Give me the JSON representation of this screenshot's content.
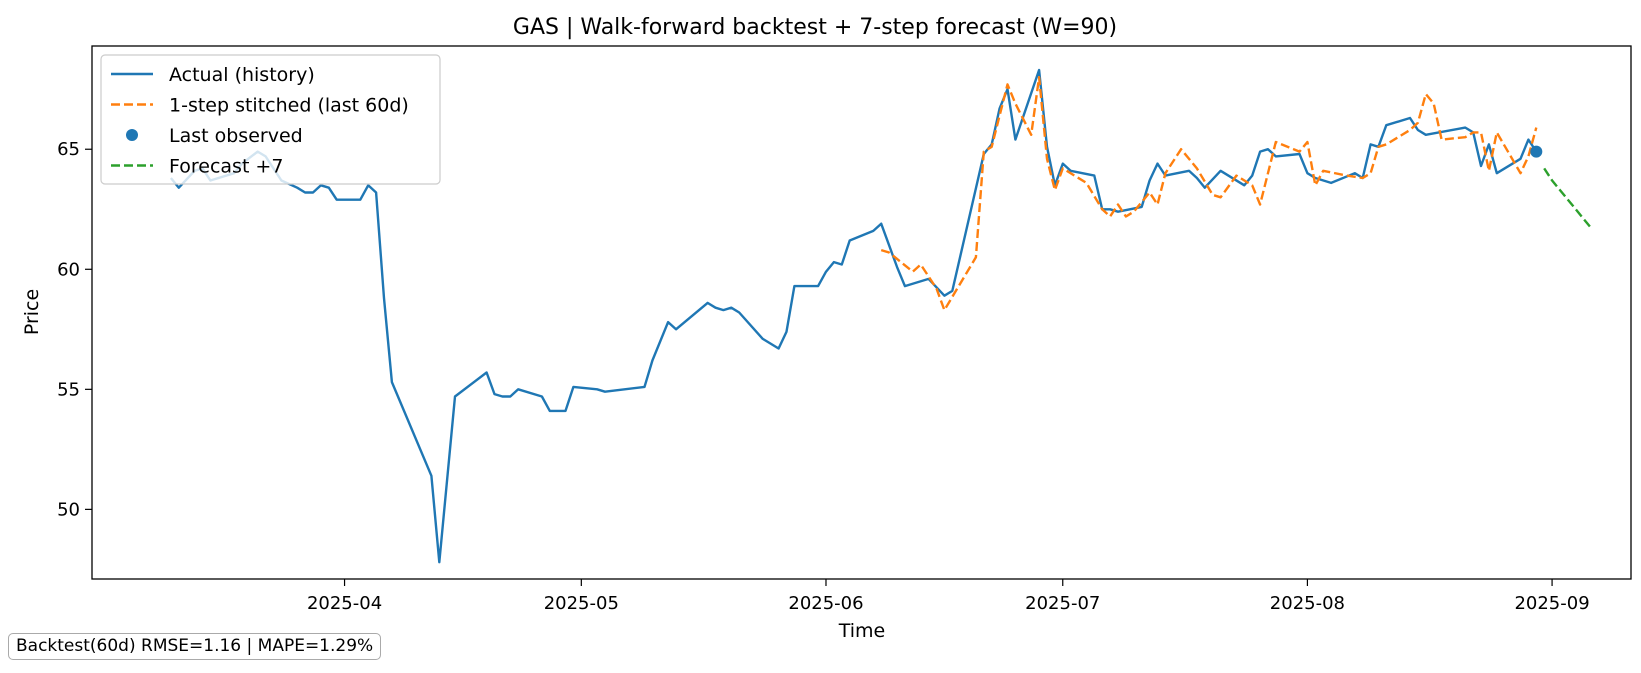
{
  "chart_data": {
    "type": "line",
    "title": "GAS | Walk-forward backtest + 7-step forecast (W=90)",
    "xlabel": "Time",
    "ylabel": "Price",
    "xlim": [
      "2025-02-28",
      "2025-09-11"
    ],
    "ylim": [
      47.1,
      69.3
    ],
    "x_ticks": [
      "2025-04-01",
      "2025-05-01",
      "2025-06-01",
      "2025-07-01",
      "2025-08-01",
      "2025-09-01"
    ],
    "x_tick_labels": [
      "2025-04",
      "2025-05",
      "2025-06",
      "2025-07",
      "2025-08",
      "2025-09"
    ],
    "y_ticks": [
      50,
      55,
      60,
      65
    ],
    "y_tick_labels": [
      "50",
      "55",
      "60",
      "65"
    ],
    "grid": false,
    "legend_position": "top-left",
    "series": [
      {
        "name": "Actual (history)",
        "style": "solid",
        "color": "#1f77b4",
        "points": [
          [
            "2025-03-10",
            63.8
          ],
          [
            "2025-03-11",
            63.4
          ],
          [
            "2025-03-13",
            64.1
          ],
          [
            "2025-03-14",
            64.2
          ],
          [
            "2025-03-15",
            63.7
          ],
          [
            "2025-03-18",
            64.0
          ],
          [
            "2025-03-19",
            64.4
          ],
          [
            "2025-03-21",
            64.9
          ],
          [
            "2025-03-22",
            64.7
          ],
          [
            "2025-03-24",
            63.7
          ],
          [
            "2025-03-26",
            63.4
          ],
          [
            "2025-03-27",
            63.2
          ],
          [
            "2025-03-28",
            63.2
          ],
          [
            "2025-03-29",
            63.5
          ],
          [
            "2025-03-30",
            63.4
          ],
          [
            "2025-03-31",
            62.9
          ],
          [
            "2025-04-03",
            62.9
          ],
          [
            "2025-04-04",
            63.5
          ],
          [
            "2025-04-05",
            63.2
          ],
          [
            "2025-04-06",
            58.8
          ],
          [
            "2025-04-07",
            55.3
          ],
          [
            "2025-04-12",
            51.4
          ],
          [
            "2025-04-13",
            47.8
          ],
          [
            "2025-04-15",
            54.7
          ],
          [
            "2025-04-19",
            55.7
          ],
          [
            "2025-04-20",
            54.8
          ],
          [
            "2025-04-21",
            54.7
          ],
          [
            "2025-04-22",
            54.7
          ],
          [
            "2025-04-23",
            55.0
          ],
          [
            "2025-04-26",
            54.7
          ],
          [
            "2025-04-27",
            54.1
          ],
          [
            "2025-04-29",
            54.1
          ],
          [
            "2025-04-30",
            55.1
          ],
          [
            "2025-05-03",
            55.0
          ],
          [
            "2025-05-04",
            54.9
          ],
          [
            "2025-05-09",
            55.1
          ],
          [
            "2025-05-10",
            56.2
          ],
          [
            "2025-05-12",
            57.8
          ],
          [
            "2025-05-13",
            57.5
          ],
          [
            "2025-05-17",
            58.6
          ],
          [
            "2025-05-18",
            58.4
          ],
          [
            "2025-05-19",
            58.3
          ],
          [
            "2025-05-20",
            58.4
          ],
          [
            "2025-05-21",
            58.2
          ],
          [
            "2025-05-24",
            57.1
          ],
          [
            "2025-05-26",
            56.7
          ],
          [
            "2025-05-27",
            57.4
          ],
          [
            "2025-05-28",
            59.3
          ],
          [
            "2025-05-31",
            59.3
          ],
          [
            "2025-06-01",
            59.9
          ],
          [
            "2025-06-02",
            60.3
          ],
          [
            "2025-06-03",
            60.2
          ],
          [
            "2025-06-04",
            61.2
          ],
          [
            "2025-06-07",
            61.6
          ],
          [
            "2025-06-08",
            61.9
          ],
          [
            "2025-06-10",
            60.1
          ],
          [
            "2025-06-11",
            59.3
          ],
          [
            "2025-06-14",
            59.6
          ],
          [
            "2025-06-16",
            58.9
          ],
          [
            "2025-06-17",
            59.1
          ],
          [
            "2025-06-21",
            64.8
          ],
          [
            "2025-06-22",
            65.2
          ],
          [
            "2025-06-23",
            66.7
          ],
          [
            "2025-06-24",
            67.5
          ],
          [
            "2025-06-25",
            65.4
          ],
          [
            "2025-06-28",
            68.3
          ],
          [
            "2025-06-29",
            65.1
          ],
          [
            "2025-06-30",
            63.5
          ],
          [
            "2025-07-01",
            64.4
          ],
          [
            "2025-07-02",
            64.1
          ],
          [
            "2025-07-05",
            63.9
          ],
          [
            "2025-07-06",
            62.5
          ],
          [
            "2025-07-07",
            62.5
          ],
          [
            "2025-07-08",
            62.4
          ],
          [
            "2025-07-11",
            62.6
          ],
          [
            "2025-07-12",
            63.7
          ],
          [
            "2025-07-13",
            64.4
          ],
          [
            "2025-07-14",
            63.9
          ],
          [
            "2025-07-17",
            64.1
          ],
          [
            "2025-07-18",
            63.8
          ],
          [
            "2025-07-19",
            63.4
          ],
          [
            "2025-07-21",
            64.1
          ],
          [
            "2025-07-24",
            63.5
          ],
          [
            "2025-07-25",
            63.9
          ],
          [
            "2025-07-26",
            64.9
          ],
          [
            "2025-07-27",
            65.0
          ],
          [
            "2025-07-28",
            64.7
          ],
          [
            "2025-07-31",
            64.8
          ],
          [
            "2025-08-01",
            64.0
          ],
          [
            "2025-08-02",
            63.8
          ],
          [
            "2025-08-04",
            63.6
          ],
          [
            "2025-08-07",
            64.0
          ],
          [
            "2025-08-08",
            63.8
          ],
          [
            "2025-08-09",
            65.2
          ],
          [
            "2025-08-10",
            65.1
          ],
          [
            "2025-08-11",
            66.0
          ],
          [
            "2025-08-14",
            66.3
          ],
          [
            "2025-08-15",
            65.8
          ],
          [
            "2025-08-16",
            65.6
          ],
          [
            "2025-08-21",
            65.9
          ],
          [
            "2025-08-22",
            65.7
          ],
          [
            "2025-08-23",
            64.3
          ],
          [
            "2025-08-24",
            65.2
          ],
          [
            "2025-08-25",
            64.0
          ],
          [
            "2025-08-28",
            64.6
          ],
          [
            "2025-08-29",
            65.4
          ],
          [
            "2025-08-30",
            64.9
          ]
        ]
      },
      {
        "name": "1-step stitched (last 60d)",
        "style": "dashed",
        "color": "#ff7f0e",
        "points": [
          [
            "2025-06-08",
            60.8
          ],
          [
            "2025-06-09",
            60.7
          ],
          [
            "2025-06-12",
            59.9
          ],
          [
            "2025-06-13",
            60.2
          ],
          [
            "2025-06-15",
            59.2
          ],
          [
            "2025-06-16",
            58.3
          ],
          [
            "2025-06-20",
            60.5
          ],
          [
            "2025-06-21",
            64.9
          ],
          [
            "2025-06-22",
            65.1
          ],
          [
            "2025-06-24",
            67.7
          ],
          [
            "2025-06-25",
            66.9
          ],
          [
            "2025-06-27",
            65.6
          ],
          [
            "2025-06-28",
            68.0
          ],
          [
            "2025-06-29",
            64.6
          ],
          [
            "2025-06-30",
            63.3
          ],
          [
            "2025-07-01",
            64.2
          ],
          [
            "2025-07-04",
            63.6
          ],
          [
            "2025-07-06",
            62.5
          ],
          [
            "2025-07-07",
            62.2
          ],
          [
            "2025-07-08",
            62.7
          ],
          [
            "2025-07-09",
            62.2
          ],
          [
            "2025-07-10",
            62.4
          ],
          [
            "2025-07-12",
            63.2
          ],
          [
            "2025-07-13",
            62.7
          ],
          [
            "2025-07-14",
            64.0
          ],
          [
            "2025-07-16",
            65.0
          ],
          [
            "2025-07-18",
            64.2
          ],
          [
            "2025-07-20",
            63.1
          ],
          [
            "2025-07-21",
            63.0
          ],
          [
            "2025-07-23",
            63.9
          ],
          [
            "2025-07-25",
            63.5
          ],
          [
            "2025-07-26",
            62.7
          ],
          [
            "2025-07-28",
            65.3
          ],
          [
            "2025-07-31",
            64.9
          ],
          [
            "2025-08-01",
            65.3
          ],
          [
            "2025-08-02",
            63.5
          ],
          [
            "2025-08-03",
            64.1
          ],
          [
            "2025-08-06",
            63.9
          ],
          [
            "2025-08-08",
            63.8
          ],
          [
            "2025-08-09",
            64.0
          ],
          [
            "2025-08-10",
            65.1
          ],
          [
            "2025-08-11",
            65.2
          ],
          [
            "2025-08-14",
            65.8
          ],
          [
            "2025-08-15",
            66.1
          ],
          [
            "2025-08-16",
            67.3
          ],
          [
            "2025-08-17",
            66.9
          ],
          [
            "2025-08-18",
            65.4
          ],
          [
            "2025-08-21",
            65.5
          ],
          [
            "2025-08-22",
            65.7
          ],
          [
            "2025-08-23",
            65.7
          ],
          [
            "2025-08-24",
            64.1
          ],
          [
            "2025-08-25",
            65.7
          ],
          [
            "2025-08-28",
            64.0
          ],
          [
            "2025-08-29",
            64.7
          ],
          [
            "2025-08-30",
            65.9
          ]
        ]
      },
      {
        "name": "Forecast +7",
        "style": "dashed",
        "color": "#2ca02c",
        "points": [
          [
            "2025-08-31",
            64.2
          ],
          [
            "2025-09-01",
            63.7
          ],
          [
            "2025-09-02",
            63.3
          ],
          [
            "2025-09-03",
            62.9
          ],
          [
            "2025-09-04",
            62.5
          ],
          [
            "2025-09-05",
            62.1
          ],
          [
            "2025-09-06",
            61.7
          ]
        ]
      }
    ],
    "marker": {
      "name": "Last observed",
      "x": "2025-08-30",
      "y": 64.9,
      "color": "#1f77b4"
    },
    "annotation": "Backtest(60d)  RMSE=1.16 | MAPE=1.29%"
  }
}
